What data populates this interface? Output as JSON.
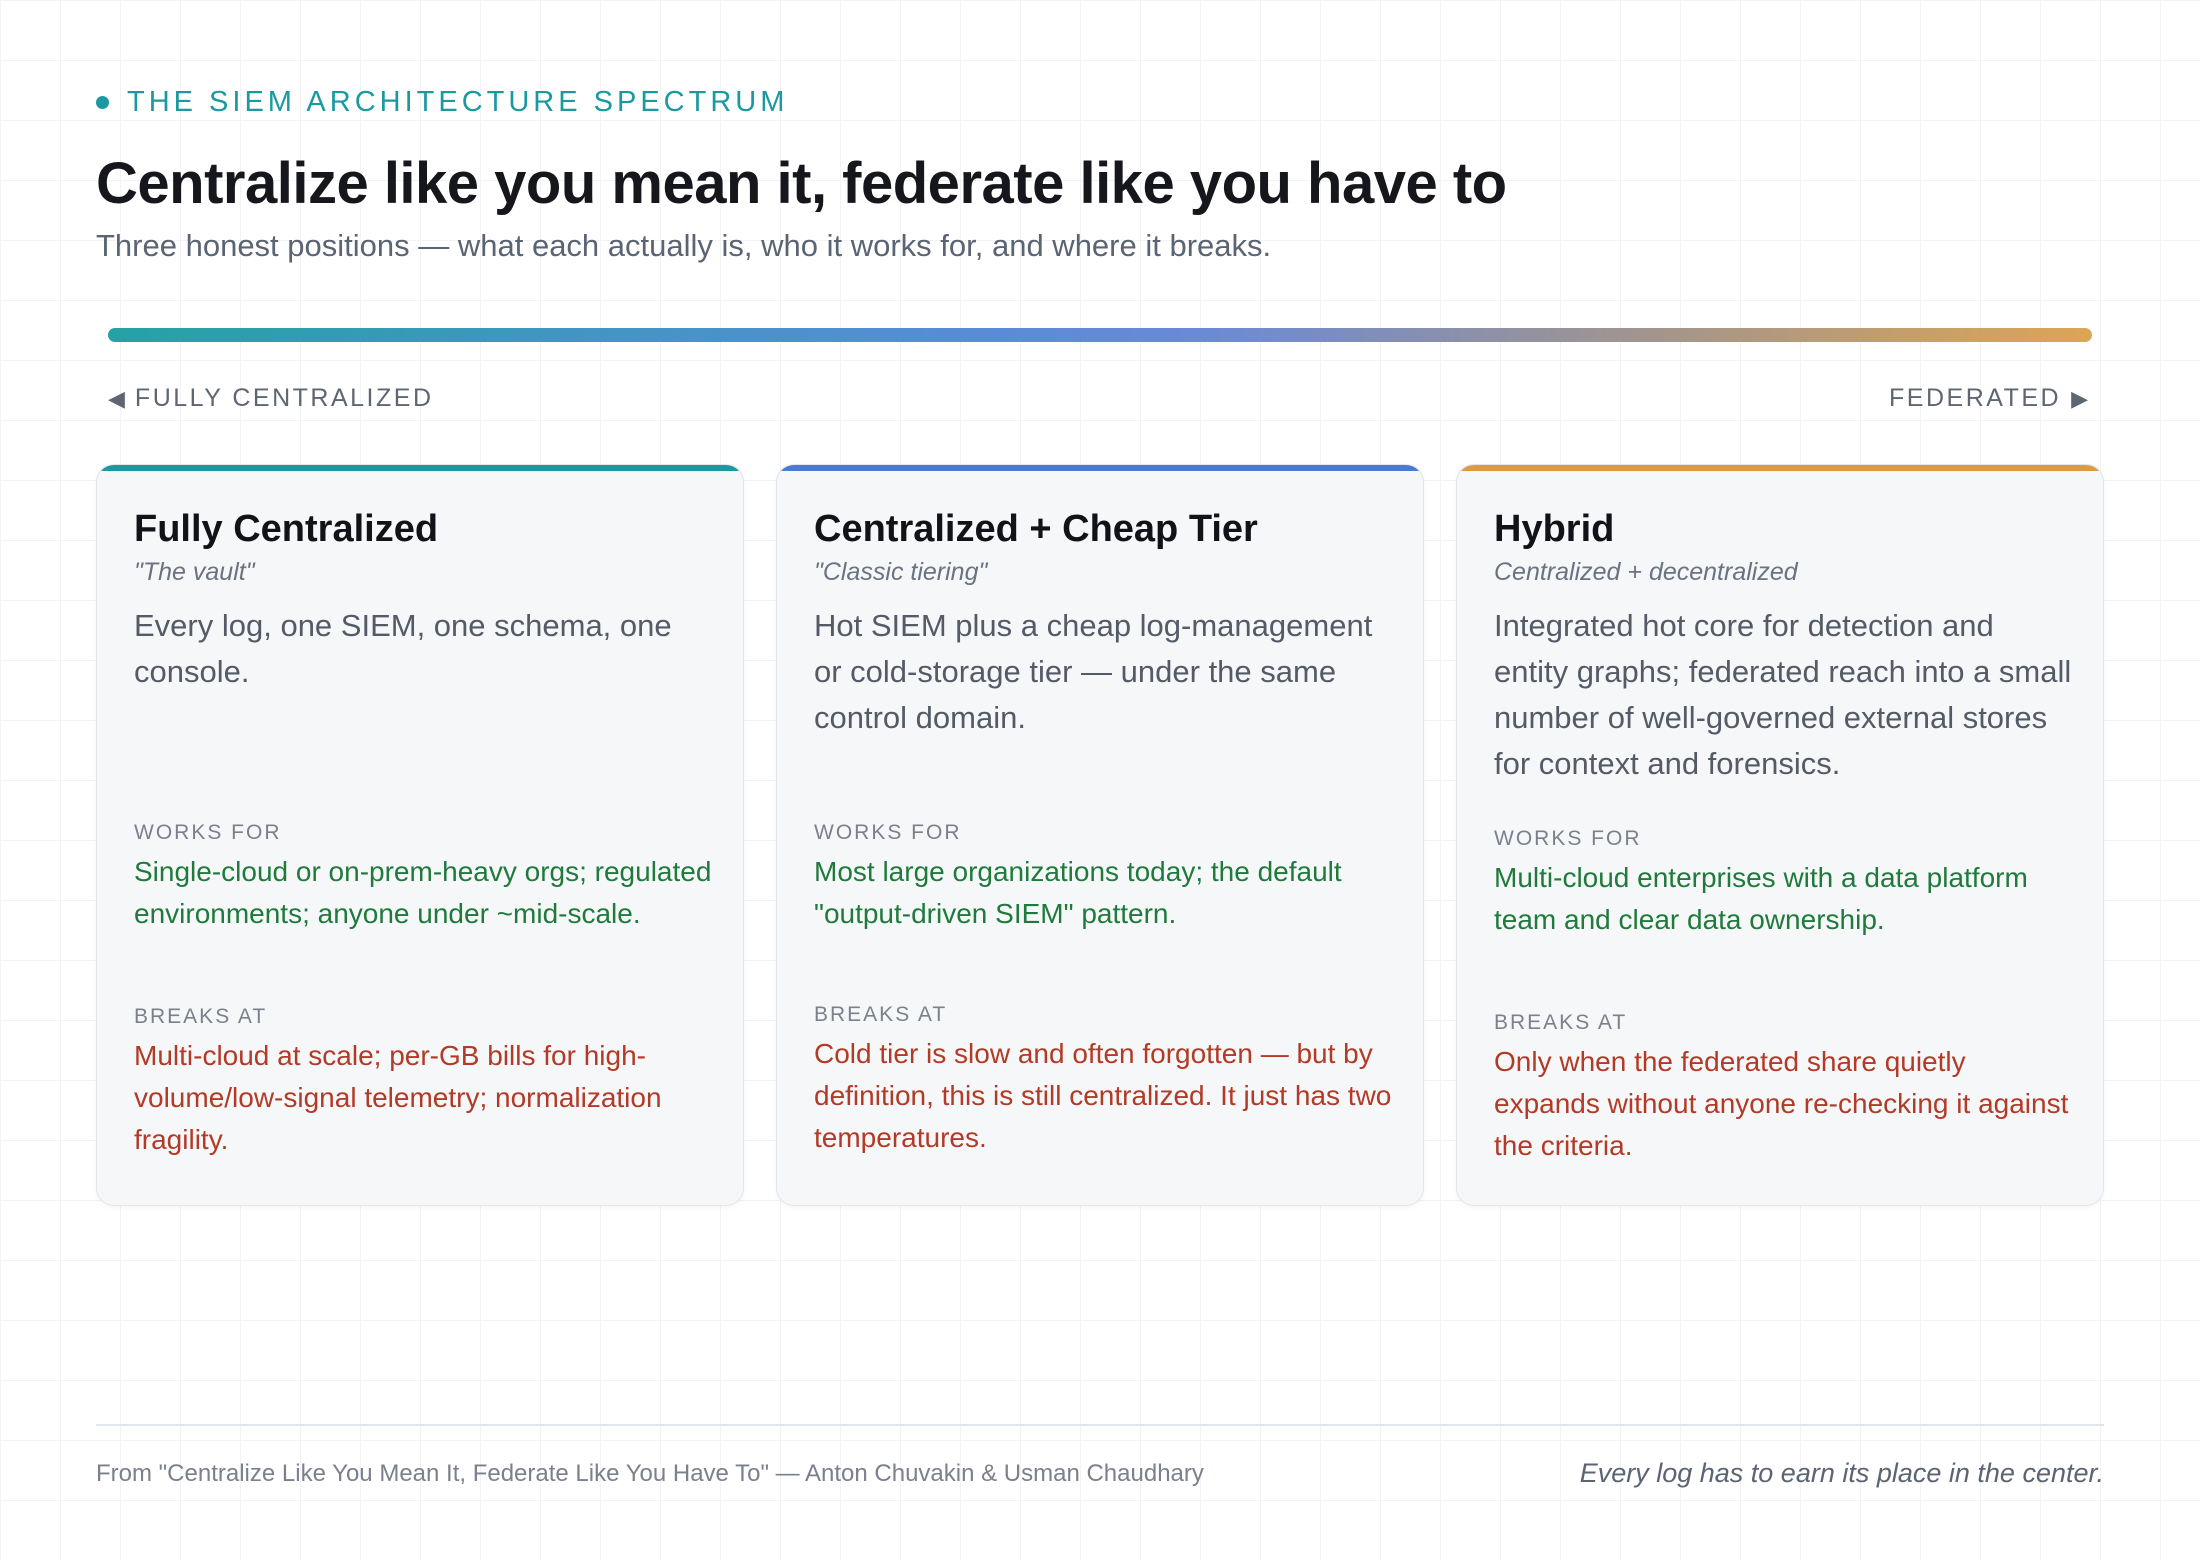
{
  "header": {
    "eyebrow": "THE SIEM ARCHITECTURE SPECTRUM",
    "title": "Centralize like you mean it, federate like you have to",
    "subtitle": "Three honest positions — what each actually is, who it works for, and where it breaks."
  },
  "spectrum": {
    "left_label": "FULLY CENTRALIZED",
    "right_label": "FEDERATED",
    "gradient_colors": [
      "#25a2a6",
      "#5a8bd8",
      "#a3958c",
      "#dda555"
    ]
  },
  "cards": [
    {
      "title": "Fully Centralized",
      "tag": "\"The vault\"",
      "description": "Every log, one SIEM, one schema, one console.",
      "works_for_label": "WORKS FOR",
      "works_for": "Single-cloud or on-prem-heavy orgs; regulated environments; anyone under ~mid-scale.",
      "breaks_at_label": "BREAKS AT",
      "breaks_at": "Multi-cloud at scale; per-GB bills for high-volume/low-signal telemetry; normalization fragility.",
      "accent": "#1a9aa0"
    },
    {
      "title": "Centralized + Cheap Tier",
      "tag": "\"Classic tiering\"",
      "description": "Hot SIEM plus a cheap log-management or cold-storage tier — under the same control domain.",
      "works_for_label": "WORKS FOR",
      "works_for": "Most large organizations today; the default \"output-driven SIEM\" pattern.",
      "breaks_at_label": "BREAKS AT",
      "breaks_at": "Cold tier is slow and often forgotten — but by definition, this is still centralized. It just has two temperatures.",
      "accent": "#4a7bd4"
    },
    {
      "title": "Hybrid",
      "tag": "Centralized + decentralized",
      "description": "Integrated hot core for detection and entity graphs; federated reach into a small number of well-governed external stores for context and forensics.",
      "works_for_label": "WORKS FOR",
      "works_for": "Multi-cloud enterprises with a data platform team and clear data ownership.",
      "breaks_at_label": "BREAKS AT",
      "breaks_at": "Only when the federated share quietly expands without anyone re-checking it against the criteria.",
      "accent": "#dd9a3e"
    }
  ],
  "footer": {
    "source": "From \"Centralize Like You Mean It, Federate Like You Have To\" — Anton Chuvakin & Usman Chaudhary",
    "tagline": "Every log has to earn its place in the center."
  }
}
